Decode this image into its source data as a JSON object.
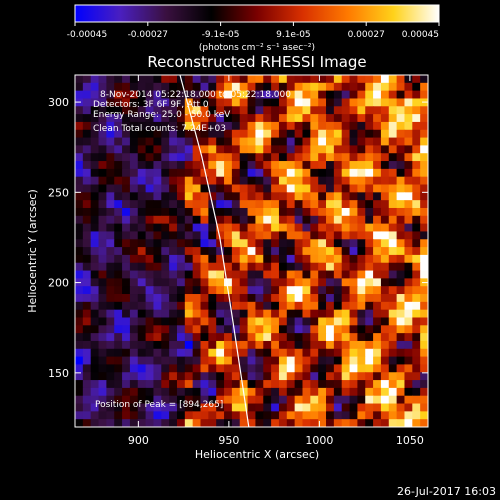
{
  "chart_data": {
    "type": "heatmap",
    "title": "Reconstructed RHESSI Image",
    "xlabel": "Heliocentric X (arcsec)",
    "ylabel": "Heliocentric Y (arcsec)",
    "xlim": [
      865,
      1060
    ],
    "ylim": [
      120,
      315
    ],
    "x_ticks": [
      900,
      950,
      1000,
      1050
    ],
    "y_ticks": [
      150,
      200,
      250,
      300
    ],
    "colorbar": {
      "label": "(photons cm⁻² s⁻¹ asec⁻²)",
      "range": [
        -0.00045,
        0.00045
      ],
      "tick_labels": [
        "-0.00045",
        "-0.00027",
        "-9.1e-05",
        "9.1e-05",
        "0.00027",
        "0.00045"
      ],
      "colormap": [
        "#0000ff",
        "#4a1fbf",
        "#3a1040",
        "#000000",
        "#7a0000",
        "#d83000",
        "#ff7a00",
        "#ffd21a",
        "#ffffff"
      ]
    },
    "annotations": [
      "8-Nov-2014 05:22:18.000 to 05:22:18.000",
      "Detectors: 3F 6F 9F, Att 0",
      "Energy Range: 25.0 - 50.0 keV",
      "Clean   Total counts: 7.24E+03"
    ],
    "peak_label": "Position of Peak = [894,265]",
    "limb_color": "#ffffff",
    "limb_points": [
      [
        923,
        315
      ],
      [
        935,
        270
      ],
      [
        945,
        225
      ],
      [
        952,
        180
      ],
      [
        958,
        140
      ],
      [
        961,
        120
      ]
    ],
    "timestamp": "26-Jul-2017 16:03"
  }
}
